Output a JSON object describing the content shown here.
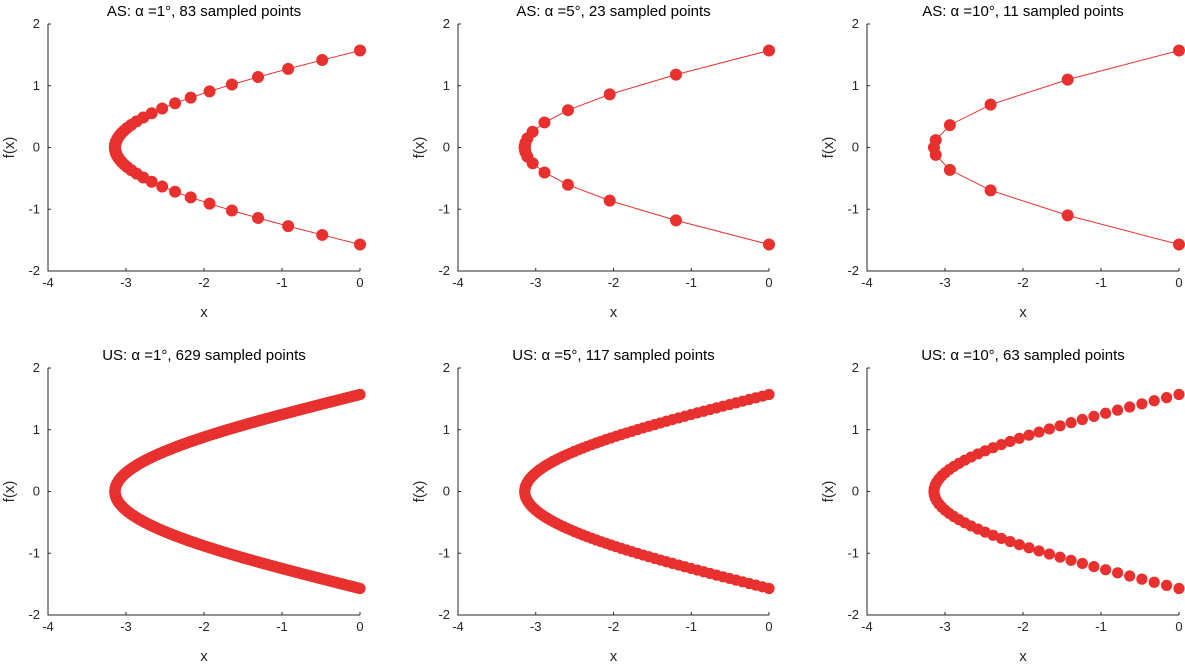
{
  "colors": {
    "series": "#e8312f",
    "axis": "#262626"
  },
  "chart_data": [
    {
      "type": "scatter",
      "title": "AS:   α =1°, 83 sampled points",
      "xlabel": "x",
      "ylabel": "f(x)",
      "xlim": [
        -4,
        0
      ],
      "ylim": [
        -2,
        2
      ],
      "xticks": [
        -4,
        -3,
        -2,
        -1,
        0
      ],
      "yticks": [
        -2,
        -1,
        0,
        1,
        2
      ],
      "connected": true,
      "alpha_deg": 1,
      "points": 83
    },
    {
      "type": "scatter",
      "title": "AS:   α =5°, 23 sampled points",
      "xlabel": "x",
      "ylabel": "f(x)",
      "xlim": [
        -4,
        0
      ],
      "ylim": [
        -2,
        2
      ],
      "xticks": [
        -4,
        -3,
        -2,
        -1,
        0
      ],
      "yticks": [
        -2,
        -1,
        0,
        1,
        2
      ],
      "connected": true,
      "alpha_deg": 5,
      "points": 23
    },
    {
      "type": "scatter",
      "title": "AS:   α =10°, 11 sampled points",
      "xlabel": "x",
      "ylabel": "f(x)",
      "xlim": [
        -4,
        0
      ],
      "ylim": [
        -2,
        2
      ],
      "xticks": [
        -4,
        -3,
        -2,
        -1,
        0
      ],
      "yticks": [
        -2,
        -1,
        0,
        1,
        2
      ],
      "connected": true,
      "alpha_deg": 10,
      "points": 11
    },
    {
      "type": "scatter",
      "title": "US:   α =1°, 629 sampled points",
      "xlabel": "x",
      "ylabel": "f(x)",
      "xlim": [
        -4,
        0
      ],
      "ylim": [
        -2,
        2
      ],
      "xticks": [
        -4,
        -3,
        -2,
        -1,
        0
      ],
      "yticks": [
        -2,
        -1,
        0,
        1,
        2
      ],
      "connected": false,
      "points": 629
    },
    {
      "type": "scatter",
      "title": "US:   α =5°, 117 sampled points",
      "xlabel": "x",
      "ylabel": "f(x)",
      "xlim": [
        -4,
        0
      ],
      "ylim": [
        -2,
        2
      ],
      "xticks": [
        -4,
        -3,
        -2,
        -1,
        0
      ],
      "yticks": [
        -2,
        -1,
        0,
        1,
        2
      ],
      "connected": false,
      "points": 117
    },
    {
      "type": "scatter",
      "title": "US:   α =10°, 63 sampled points",
      "xlabel": "x",
      "ylabel": "f(x)",
      "xlim": [
        -4,
        0
      ],
      "ylim": [
        -2,
        2
      ],
      "xticks": [
        -4,
        -3,
        -2,
        -1,
        0
      ],
      "yticks": [
        -2,
        -1,
        0,
        1,
        2
      ],
      "connected": false,
      "points": 63
    }
  ]
}
